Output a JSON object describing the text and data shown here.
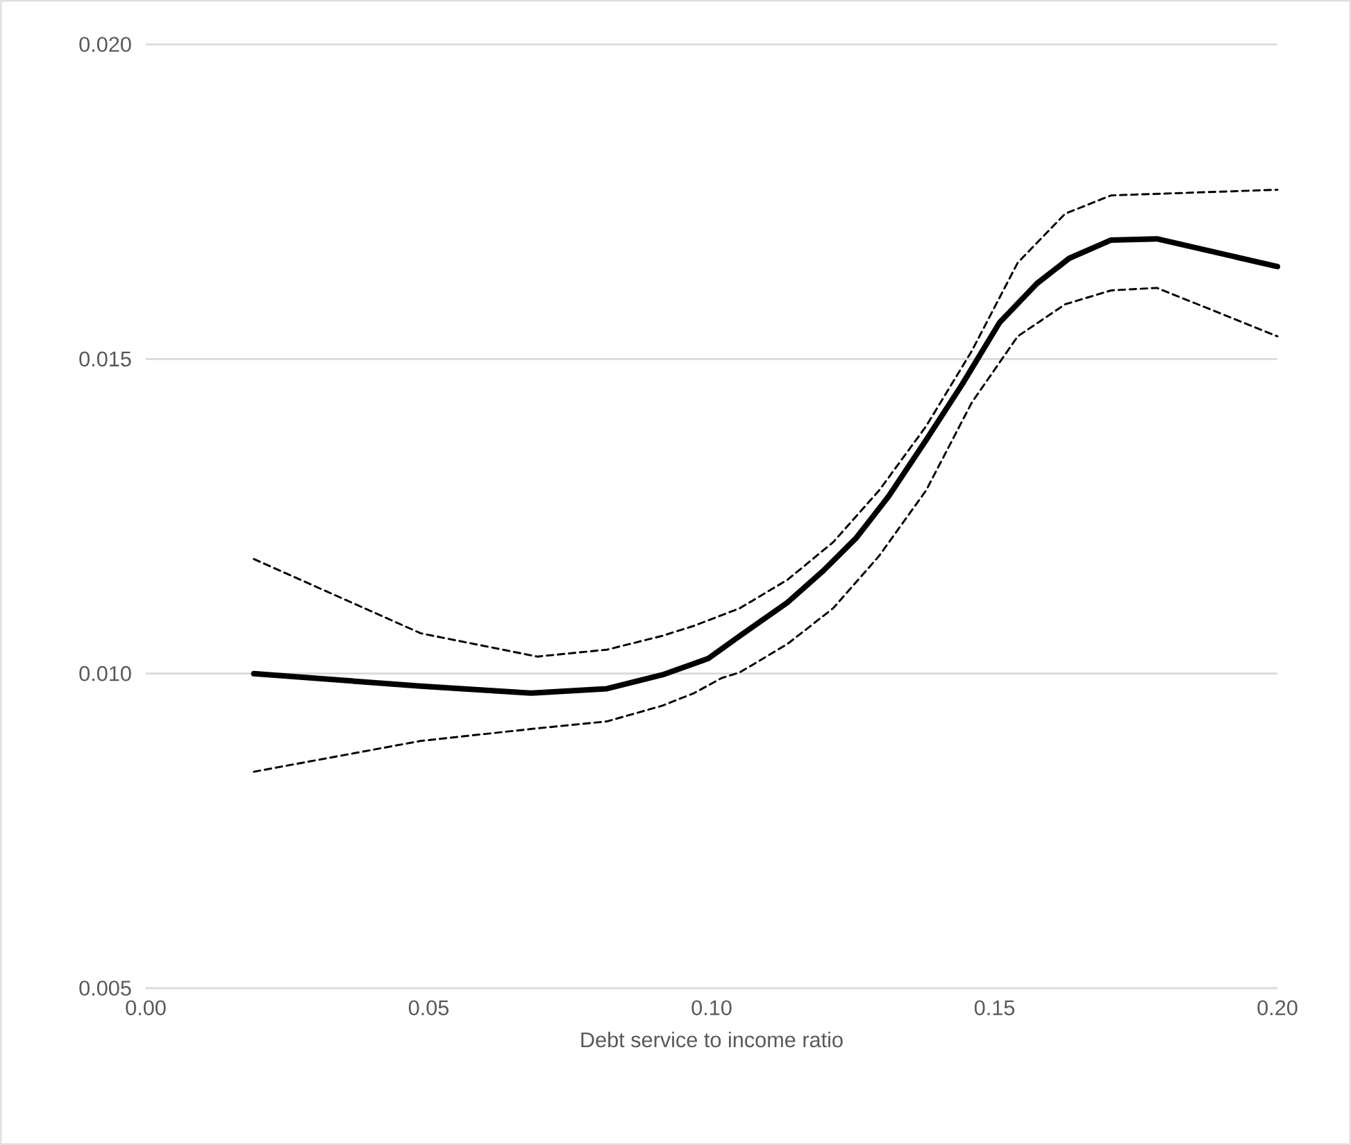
{
  "chart_data": {
    "type": "line",
    "xlabel": "Debt service to income ratio",
    "xlim": [
      0,
      0.2
    ],
    "ylim": [
      0.005,
      0.02
    ],
    "xticks": [
      {
        "value": 0,
        "label": "0.00"
      },
      {
        "value": 0.05,
        "label": "0.05"
      },
      {
        "value": 0.1,
        "label": "0.10"
      },
      {
        "value": 0.15,
        "label": "0.15"
      },
      {
        "value": 0.2,
        "label": "0.20"
      }
    ],
    "yticks": [
      {
        "value": 0.005,
        "label": "0.005"
      },
      {
        "value": 0.01,
        "label": "0.010"
      },
      {
        "value": 0.015,
        "label": "0.015"
      },
      {
        "value": 0.02,
        "label": "0.020"
      }
    ],
    "grid": "y",
    "legend": false,
    "marker": "none",
    "series": [
      {
        "color": "#000000",
        "line_style": "solid",
        "x": [
          0.0191,
          0.0486,
          0.0682,
          0.0815,
          0.0913,
          0.0994,
          0.105,
          0.1134,
          0.1198,
          0.1256,
          0.1313,
          0.1379,
          0.1443,
          0.1509,
          0.1575,
          0.1632,
          0.1706,
          0.1787,
          0.2
        ],
        "values": [
          0.01,
          0.0098,
          0.00969,
          0.00976,
          0.00998,
          0.01024,
          0.0106,
          0.01113,
          0.01164,
          0.01216,
          0.01282,
          0.01371,
          0.0146,
          0.01558,
          0.0162,
          0.0166,
          0.01689,
          0.01691,
          0.01647
        ]
      },
      {
        "color": "#000000",
        "line_style": "dashed",
        "x": [
          0.0191,
          0.0486,
          0.0692,
          0.0815,
          0.0913,
          0.0969,
          0.105,
          0.1134,
          0.1215,
          0.1296,
          0.1379,
          0.146,
          0.1541,
          0.1625,
          0.1706,
          0.2
        ],
        "values": [
          0.01182,
          0.01064,
          0.01027,
          0.01038,
          0.0106,
          0.01076,
          0.01104,
          0.01149,
          0.01209,
          0.01291,
          0.01393,
          0.01513,
          0.01653,
          0.01731,
          0.0176,
          0.01769
        ]
      },
      {
        "color": "#000000",
        "line_style": "dashed",
        "x": [
          0.0191,
          0.0486,
          0.0692,
          0.0815,
          0.0913,
          0.0969,
          0.1018,
          0.105,
          0.1134,
          0.1215,
          0.1296,
          0.1379,
          0.146,
          0.1541,
          0.1625,
          0.1706,
          0.1787,
          0.2
        ],
        "values": [
          0.00844,
          0.00893,
          0.00913,
          0.00924,
          0.00949,
          0.00969,
          0.00993,
          0.01002,
          0.01047,
          0.01104,
          0.01187,
          0.01291,
          0.01431,
          0.01536,
          0.01587,
          0.01609,
          0.01613,
          0.01536
        ]
      }
    ]
  }
}
